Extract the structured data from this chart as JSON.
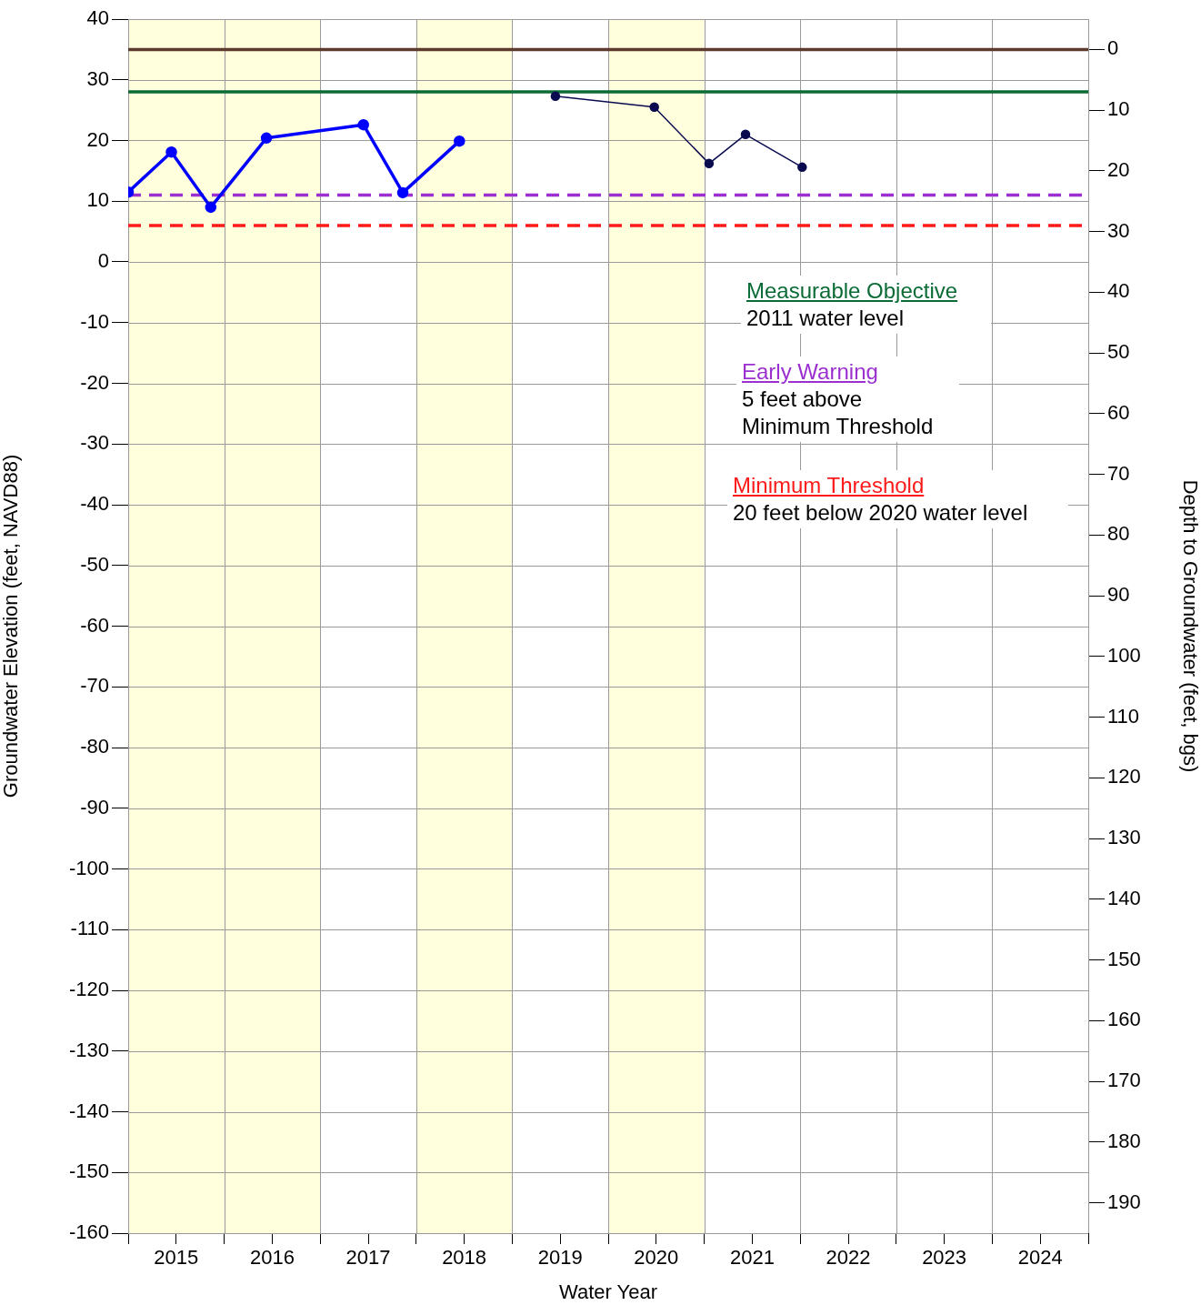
{
  "chart_data": {
    "type": "line",
    "xlabel": "Water Year",
    "ylabel": "Groundwater Elevation (feet, NAVD88)",
    "y2label": "Depth to Groundwater (feet, bgs)",
    "xlim": [
      2014.5,
      2024.5
    ],
    "xticks": [
      {
        "value": 2014.5,
        "label": null
      },
      {
        "value": 2015,
        "label": "2015"
      },
      {
        "value": 2015.5,
        "label": null
      },
      {
        "value": 2016,
        "label": "2016"
      },
      {
        "value": 2016.5,
        "label": null
      },
      {
        "value": 2017,
        "label": "2017"
      },
      {
        "value": 2017.5,
        "label": null
      },
      {
        "value": 2018,
        "label": "2018"
      },
      {
        "value": 2018.5,
        "label": null
      },
      {
        "value": 2019,
        "label": "2019"
      },
      {
        "value": 2019.5,
        "label": null
      },
      {
        "value": 2020,
        "label": "2020"
      },
      {
        "value": 2020.5,
        "label": null
      },
      {
        "value": 2021,
        "label": "2021"
      },
      {
        "value": 2021.5,
        "label": null
      },
      {
        "value": 2022,
        "label": "2022"
      },
      {
        "value": 2022.5,
        "label": null
      },
      {
        "value": 2023,
        "label": "2023"
      },
      {
        "value": 2023.5,
        "label": null
      },
      {
        "value": 2024,
        "label": "2024"
      },
      {
        "value": 2024.5,
        "label": null
      }
    ],
    "ylim": [
      -160,
      40
    ],
    "yticks": [
      -160,
      -150,
      -140,
      -130,
      -120,
      -110,
      -100,
      -90,
      -80,
      -70,
      -60,
      -50,
      -40,
      -30,
      -20,
      -10,
      0,
      10,
      20,
      30,
      40
    ],
    "y2lim": [
      195,
      -5
    ],
    "y2ticks": [
      0,
      10,
      20,
      30,
      40,
      50,
      60,
      70,
      80,
      90,
      100,
      110,
      120,
      130,
      140,
      150,
      160,
      170,
      180,
      190
    ],
    "grid": true,
    "legend": false,
    "marker": "circle",
    "line_style": "solid",
    "series": [
      {
        "color": "#0000ff",
        "x": [
          2014.5,
          2014.95,
          2015.36,
          2015.94,
          2016.95,
          2017.36,
          2017.95
        ],
        "values": [
          11.5,
          18.1,
          9.0,
          20.4,
          22.6,
          11.4,
          19.9
        ]
      },
      {
        "color": "#0a0a50",
        "x": [
          2018.95,
          2019.98,
          2020.55,
          2020.93,
          2021.52
        ],
        "values": [
          27.3,
          25.5,
          16.2,
          21.0,
          15.6
        ]
      }
    ],
    "bands": [
      {
        "axis": "x",
        "from": 2014.5,
        "to": 2016.5,
        "color": "#ffffdd"
      },
      {
        "axis": "x",
        "from": 2017.5,
        "to": 2018.5,
        "color": "#ffffdd"
      },
      {
        "axis": "x",
        "from": 2019.5,
        "to": 2020.5,
        "color": "#ffffdd"
      }
    ],
    "ref_lines": [
      {
        "axis": "y",
        "value": 35,
        "color": "#5c3a2e",
        "line_style": "solid"
      },
      {
        "axis": "y",
        "value": 28,
        "color": "#0b6b35",
        "line_style": "solid",
        "label": "Measurable Objective"
      },
      {
        "axis": "y",
        "value": 11,
        "color": "#9b2fd0",
        "line_style": "dashed",
        "label": "Early Warning"
      },
      {
        "axis": "y",
        "value": 6,
        "color": "#ff1a1a",
        "line_style": "dashed",
        "label": "Minimum Threshold"
      }
    ],
    "annotations": [
      "2011 water level",
      "5 feet above Minimum Threshold",
      "20 feet below 2020 water level"
    ]
  }
}
